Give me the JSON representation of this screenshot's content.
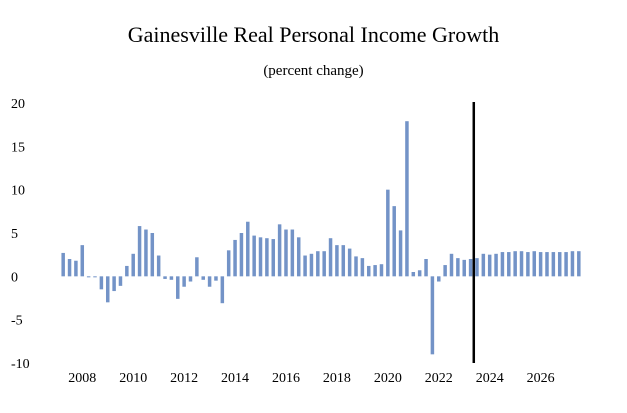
{
  "chart_data": {
    "type": "bar",
    "title": "Gainesville Real Personal Income Growth",
    "subtitle": "(percent change)",
    "xlabel": "",
    "ylabel": "",
    "ylim": [
      -10,
      20
    ],
    "y_ticks": [
      20,
      15,
      10,
      5,
      0,
      -5,
      -10
    ],
    "x_tick_labels": [
      "2008",
      "2010",
      "2012",
      "2014",
      "2016",
      "2018",
      "2020",
      "2022",
      "2024",
      "2026"
    ],
    "first_quarter": "2007 Q2",
    "forecast_start_marker": "2023 Q3",
    "bar_color": "#7393c7",
    "divider_color": "#000000",
    "values": [
      2.7,
      2.0,
      1.8,
      3.6,
      -0.1,
      -0.1,
      -1.5,
      -3.0,
      -1.7,
      -1.1,
      1.2,
      2.6,
      5.8,
      5.4,
      5.0,
      2.4,
      -0.3,
      -0.4,
      -2.6,
      -1.2,
      -0.6,
      2.2,
      -0.4,
      -1.2,
      -0.5,
      -3.1,
      3.0,
      4.2,
      5.0,
      6.3,
      4.7,
      4.5,
      4.4,
      4.3,
      6.0,
      5.4,
      5.4,
      4.5,
      2.4,
      2.6,
      2.9,
      2.9,
      4.4,
      3.6,
      3.6,
      3.2,
      2.3,
      2.1,
      1.2,
      1.3,
      1.4,
      10.0,
      8.1,
      5.3,
      17.9,
      0.5,
      0.7,
      2.0,
      -9.0,
      -0.6,
      1.3,
      2.6,
      2.1,
      1.9,
      2.0,
      2.1,
      2.6,
      2.5,
      2.6,
      2.8,
      2.8,
      2.9,
      2.9,
      2.8,
      2.9,
      2.8,
      2.8,
      2.8,
      2.8,
      2.8,
      2.9,
      2.9
    ]
  }
}
